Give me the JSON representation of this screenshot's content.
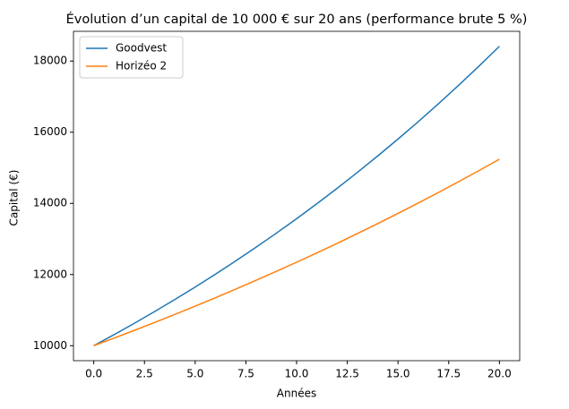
{
  "chart_data": {
    "type": "line",
    "title": "Évolution d’un capital de 10 000 € sur 20 ans (performance brute 5 %)",
    "x_label": "Années",
    "y_label": "Capital (€)",
    "x": [
      0,
      1,
      2,
      3,
      4,
      5,
      6,
      7,
      8,
      9,
      10,
      11,
      12,
      13,
      14,
      15,
      16,
      17,
      18,
      19,
      20
    ],
    "series": [
      {
        "name": "Goodvest",
        "color": "#1f77b4",
        "values": [
          10000,
          10310,
          10630,
          10959,
          11299,
          11649,
          12010,
          12383,
          12766,
          13162,
          13570,
          13991,
          14425,
          14872,
          15333,
          15808,
          16298,
          16804,
          17325,
          17862,
          18415
        ]
      },
      {
        "name": "Horizéo 2",
        "color": "#ff7f0e",
        "values": [
          10000,
          10213,
          10431,
          10653,
          10880,
          11111,
          11348,
          11590,
          11837,
          12089,
          12346,
          12609,
          12877,
          13152,
          13432,
          13718,
          14010,
          14308,
          14613,
          14924,
          15242
        ]
      }
    ],
    "xlim": [
      -1,
      21
    ],
    "ylim": [
      9579,
      18836
    ],
    "xticks": [
      {
        "value": 0,
        "label": "0.0"
      },
      {
        "value": 2.5,
        "label": "2.5"
      },
      {
        "value": 5,
        "label": "5.0"
      },
      {
        "value": 7.5,
        "label": "7.5"
      },
      {
        "value": 10,
        "label": "10.0"
      },
      {
        "value": 12.5,
        "label": "12.5"
      },
      {
        "value": 15,
        "label": "15.0"
      },
      {
        "value": 17.5,
        "label": "17.5"
      },
      {
        "value": 20,
        "label": "20.0"
      }
    ],
    "yticks": [
      10000,
      12000,
      14000,
      16000,
      18000
    ],
    "grid": false,
    "legend": "upper left"
  }
}
